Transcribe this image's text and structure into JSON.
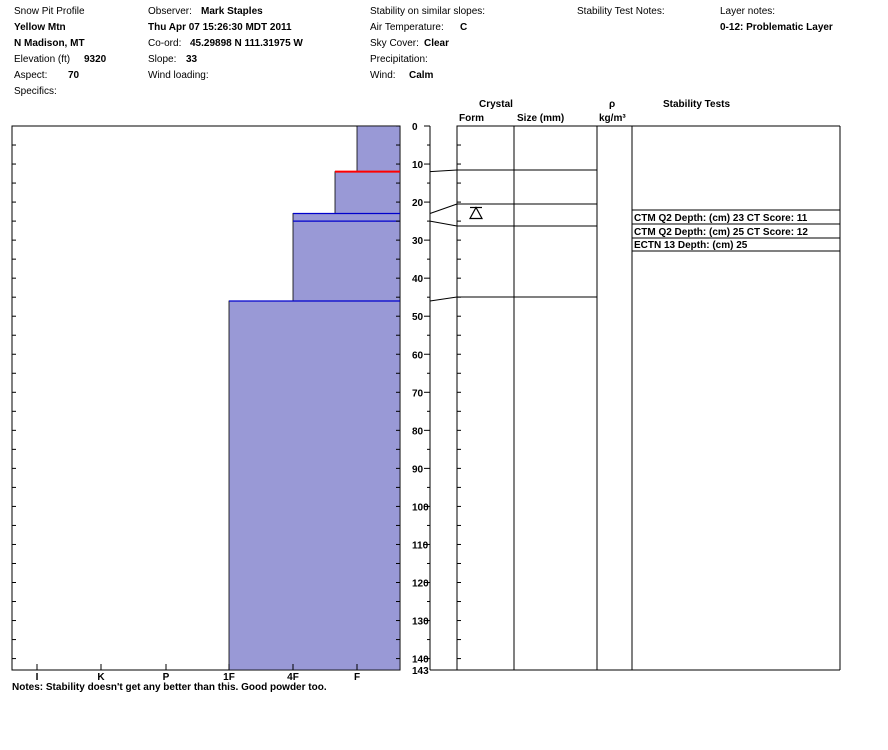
{
  "header": {
    "col1": {
      "title": "Snow Pit Profile",
      "location": "Yellow Mtn",
      "region": "N Madison, MT",
      "elevation_label": "Elevation (ft)",
      "elevation_value": "9320",
      "aspect_label": "Aspect:",
      "aspect_value": "70",
      "specifics_label": "Specifics:"
    },
    "col2": {
      "observer_label": "Observer:",
      "observer_value": "Mark Staples",
      "datetime": "Thu Apr 07 15:26:30 MDT 2011",
      "coord_label": "Co-ord:",
      "coord_value": "45.29898 N 111.31975 W",
      "slope_label": "Slope:",
      "slope_value": "33",
      "wind_loading_label": "Wind loading:"
    },
    "col3": {
      "stability_label": "Stability on similar slopes:",
      "air_temp_label": "Air Temperature:",
      "air_temp_value": "C",
      "sky_label": "Sky Cover:",
      "sky_value": "Clear",
      "precip_label": "Precipitation:",
      "wind_label": "Wind:",
      "wind_value": "Calm"
    },
    "col4": {
      "stability_notes_label": "Stability Test Notes:"
    },
    "col5": {
      "layer_notes_label": "Layer notes:",
      "layer_notes_value": "0-12: Problematic Layer"
    }
  },
  "table_headers": {
    "crystal": "Crystal",
    "form": "Form",
    "size": "Size (mm)",
    "rho": "ρ",
    "rho_unit": "kg/m³",
    "stability_tests": "Stability Tests"
  },
  "notes": "Notes:  Stability doesn't get any better than this.  Good powder too.",
  "colors": {
    "hardness_fill": "#9999d6",
    "layer_line": "#0000cc",
    "problem_line": "#ff0000",
    "axis": "#000000"
  },
  "chart_data": {
    "type": "area",
    "depth_unit": "cm",
    "depth_range": [
      0,
      143
    ],
    "depth_ticks": [
      0,
      10,
      20,
      30,
      40,
      50,
      60,
      70,
      80,
      90,
      100,
      110,
      120,
      130,
      140,
      143
    ],
    "hardness_ticks": [
      "I",
      "K",
      "P",
      "1F",
      "4F",
      "F"
    ],
    "hardness_layers": [
      {
        "top": 0,
        "bottom": 12,
        "hardness": "F"
      },
      {
        "top": 12,
        "bottom": 23,
        "hardness": "4F-"
      },
      {
        "top": 23,
        "bottom": 46,
        "hardness": "4F"
      },
      {
        "top": 46,
        "bottom": 143,
        "hardness": "1F"
      }
    ],
    "layer_boundaries": [
      {
        "depth": 12,
        "problematic": true
      },
      {
        "depth": 23,
        "problematic": false
      },
      {
        "depth": 25,
        "problematic": false
      },
      {
        "depth": 46,
        "problematic": false
      }
    ],
    "crystal_symbol_depth": 23,
    "stability_tests": [
      {
        "text": "CTM Q2 Depth: (cm) 23 CT Score: 11",
        "depth": 23
      },
      {
        "text": "CTM Q2 Depth: (cm) 25 CT Score: 12",
        "depth": 25
      },
      {
        "text": "ECTN 13  Depth: (cm) 25",
        "depth": 25
      }
    ]
  }
}
